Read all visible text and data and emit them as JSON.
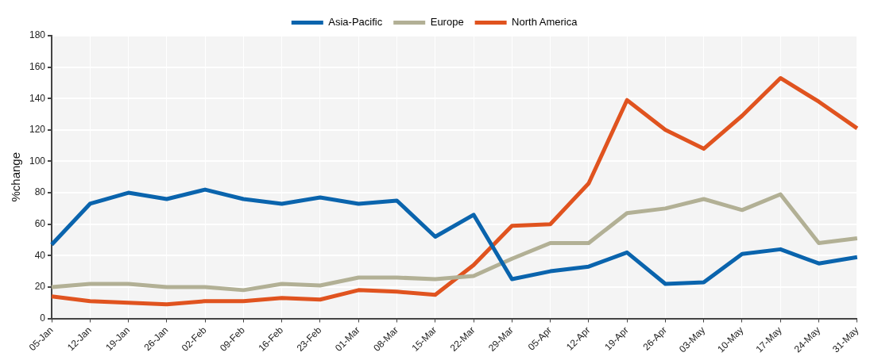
{
  "chart_data": {
    "type": "line",
    "ylabel": "%change",
    "categories": [
      "05-Jan",
      "12-Jan",
      "19-Jan",
      "26-Jan",
      "02-Feb",
      "09-Feb",
      "16-Feb",
      "23-Feb",
      "01-Mar",
      "08-Mar",
      "15-Mar",
      "22-Mar",
      "29-Mar",
      "05-Apr",
      "12-Apr",
      "19-Apr",
      "26-Apr",
      "03-May",
      "10-May",
      "17-May",
      "24-May",
      "31-May"
    ],
    "series": [
      {
        "name": "Asia-Pacific",
        "color": "#0a64ad",
        "values": [
          47,
          73,
          80,
          76,
          82,
          76,
          73,
          77,
          73,
          75,
          52,
          66,
          25,
          30,
          33,
          42,
          22,
          23,
          41,
          44,
          35,
          39
        ]
      },
      {
        "name": "Europe",
        "color": "#b2b095",
        "values": [
          20,
          22,
          22,
          20,
          20,
          18,
          22,
          21,
          26,
          26,
          25,
          27,
          38,
          48,
          48,
          67,
          70,
          76,
          69,
          79,
          48,
          51
        ]
      },
      {
        "name": "North America",
        "color": "#e0531f",
        "values": [
          14,
          11,
          10,
          9,
          11,
          11,
          13,
          12,
          18,
          17,
          15,
          34,
          59,
          60,
          86,
          139,
          120,
          108,
          129,
          153,
          138,
          121
        ]
      }
    ],
    "ylim": [
      0,
      180
    ],
    "yticks": [
      0,
      20,
      40,
      60,
      80,
      100,
      120,
      140,
      160,
      180
    ],
    "grid": true,
    "legend": "top",
    "marker": "none",
    "line_style": "solid"
  }
}
